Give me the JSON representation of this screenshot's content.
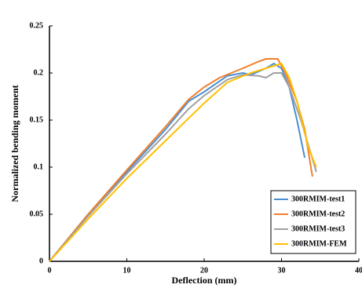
{
  "chart_data": {
    "type": "line",
    "x_label": "Deflection (mm)",
    "y_label": "Normalized bending moment",
    "xlim": [
      0,
      40
    ],
    "xticks": [
      0,
      10,
      20,
      30,
      40
    ],
    "ylim": [
      0,
      0.25
    ],
    "yticks": [
      0,
      0.05,
      0.1,
      0.15,
      0.2,
      0.25
    ],
    "legend": "lower right",
    "series": [
      {
        "name": "300RMIM-test1",
        "color": "#4a8fd4",
        "x": [
          0,
          5,
          10,
          15,
          18,
          20,
          23,
          25,
          26,
          28,
          29,
          30,
          31,
          32,
          33
        ],
        "values": [
          0,
          0.05,
          0.095,
          0.14,
          0.17,
          0.18,
          0.197,
          0.2,
          0.198,
          0.205,
          0.21,
          0.205,
          0.185,
          0.15,
          0.11
        ]
      },
      {
        "name": "300RMIM-test2",
        "color": "#f07f2a",
        "x": [
          0,
          5,
          10,
          15,
          18,
          20,
          22,
          25,
          27,
          28,
          29.5,
          30.5,
          32,
          33,
          34
        ],
        "values": [
          0,
          0.05,
          0.097,
          0.143,
          0.172,
          0.185,
          0.195,
          0.205,
          0.212,
          0.215,
          0.215,
          0.2,
          0.17,
          0.14,
          0.09
        ]
      },
      {
        "name": "300RMIM-test3",
        "color": "#a0a0a0",
        "x": [
          0,
          5,
          10,
          15,
          18,
          20,
          23,
          25,
          27,
          28,
          29,
          30,
          31,
          32.5,
          34.5
        ],
        "values": [
          0,
          0.048,
          0.093,
          0.135,
          0.162,
          0.176,
          0.193,
          0.198,
          0.197,
          0.195,
          0.2,
          0.2,
          0.185,
          0.15,
          0.095
        ]
      },
      {
        "name": "300RMIM-FEM",
        "color": "#ffc000",
        "x": [
          0,
          5,
          10,
          15,
          20,
          23,
          26,
          28,
          30,
          31,
          32,
          33.5,
          34.5
        ],
        "values": [
          0,
          0.045,
          0.088,
          0.128,
          0.168,
          0.19,
          0.2,
          0.205,
          0.21,
          0.195,
          0.17,
          0.12,
          0.1
        ]
      }
    ]
  }
}
